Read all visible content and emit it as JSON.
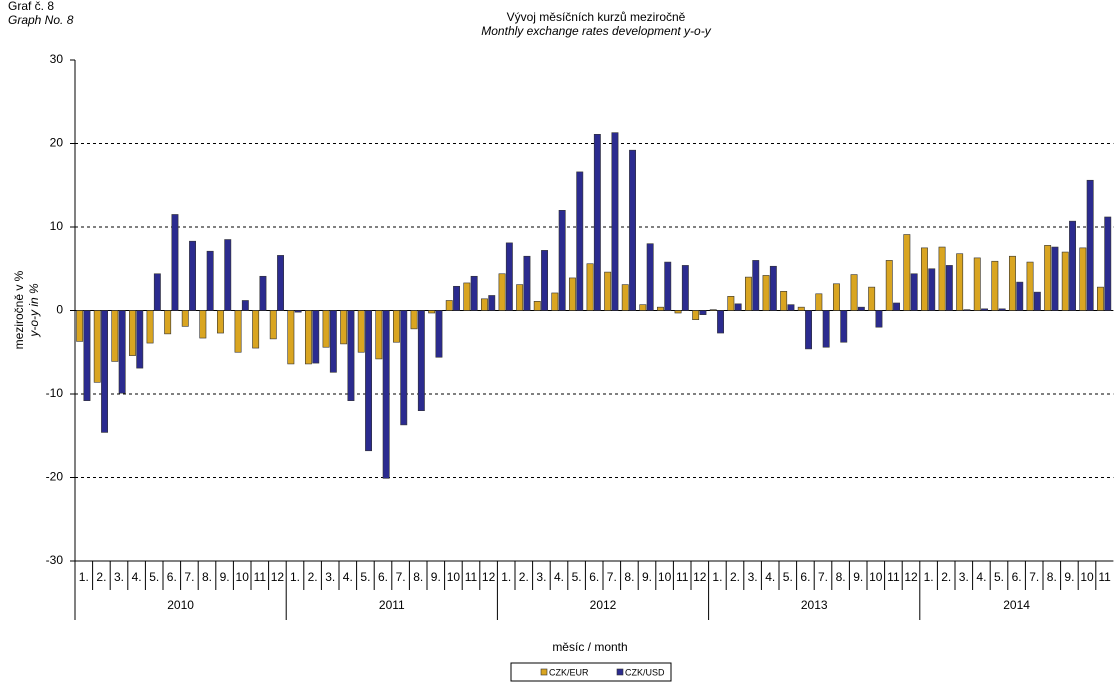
{
  "chart_data": {
    "type": "bar",
    "label": "Graf č. 8",
    "label_en": "Graph No. 8",
    "title": "Vývoj měsíčních kurzů meziročně",
    "subtitle": "Monthly exchange rates development  y-o-y",
    "ylabel": "meziročně v %",
    "ylabel_en": "y-o-y in %",
    "xlabel": "měsíc / month",
    "ylim": [
      -30,
      30
    ],
    "yticks": [
      -30,
      -20,
      -10,
      0,
      10,
      20,
      30
    ],
    "grid": true,
    "groups": [
      {
        "name": "2010",
        "categories": [
          "1.",
          "2.",
          "3.",
          "4.",
          "5.",
          "6.",
          "7.",
          "8.",
          "9.",
          "10",
          "11",
          "12"
        ]
      },
      {
        "name": "2011",
        "categories": [
          "1.",
          "2.",
          "3.",
          "4.",
          "5.",
          "6.",
          "7.",
          "8.",
          "9.",
          "10",
          "11",
          "12"
        ]
      },
      {
        "name": "2012",
        "categories": [
          "1.",
          "2.",
          "3.",
          "4.",
          "5.",
          "6.",
          "7.",
          "8.",
          "9.",
          "10",
          "11",
          "12"
        ]
      },
      {
        "name": "2013",
        "categories": [
          "1.",
          "2.",
          "3.",
          "4.",
          "5.",
          "6.",
          "7.",
          "8.",
          "9.",
          "10",
          "11",
          "12"
        ]
      },
      {
        "name": "2014",
        "categories": [
          "1.",
          "2.",
          "3.",
          "4.",
          "5.",
          "6.",
          "7.",
          "8.",
          "9.",
          "10",
          "11"
        ]
      }
    ],
    "series": [
      {
        "name": "CZK/EUR",
        "color": "#d9a521",
        "values": [
          -3.7,
          -8.6,
          -6.1,
          -5.4,
          -3.9,
          -2.8,
          -1.9,
          -3.3,
          -2.7,
          -5.0,
          -4.5,
          -3.4,
          -6.4,
          -6.4,
          -4.4,
          -4.0,
          -5.0,
          -5.8,
          -3.8,
          -2.2,
          -0.3,
          1.2,
          3.3,
          1.4,
          4.4,
          3.1,
          1.1,
          2.1,
          3.9,
          5.6,
          4.6,
          3.1,
          0.7,
          0.4,
          -0.3,
          -1.1,
          0.1,
          1.7,
          4.0,
          4.2,
          2.3,
          0.4,
          2.0,
          3.2,
          4.3,
          2.8,
          6.0,
          9.1,
          7.5,
          7.6,
          6.8,
          6.3,
          5.9,
          6.5,
          5.8,
          7.8,
          7.0,
          7.5,
          2.8
        ]
      },
      {
        "name": "CZK/USD",
        "color": "#2b2b8f",
        "values": [
          -10.8,
          -14.6,
          -9.9,
          -6.9,
          4.4,
          11.5,
          8.3,
          7.1,
          8.5,
          1.2,
          4.1,
          6.6,
          -0.2,
          -6.3,
          -7.4,
          -10.8,
          -16.8,
          -20.1,
          -13.7,
          -12.0,
          -5.6,
          2.9,
          4.1,
          1.8,
          8.1,
          6.5,
          7.2,
          12.0,
          16.6,
          21.1,
          21.3,
          19.2,
          8.0,
          5.8,
          5.4,
          -0.5,
          -2.7,
          0.8,
          6.0,
          5.3,
          0.7,
          -4.6,
          -4.4,
          -3.8,
          0.4,
          -2.0,
          0.9,
          4.4,
          5.0,
          5.4,
          0.1,
          0.2,
          0.2,
          3.4,
          2.2,
          7.6,
          10.7,
          15.6,
          11.2
        ]
      }
    ]
  }
}
